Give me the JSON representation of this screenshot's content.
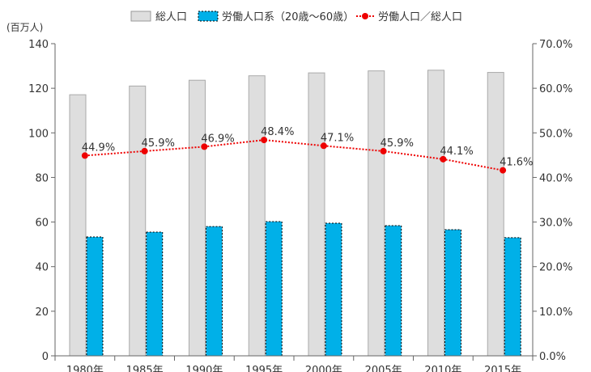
{
  "chart_data": {
    "type": "bar",
    "title": "",
    "ylabel": "(百万人)",
    "categories": [
      "1980年",
      "1985年",
      "1990年",
      "1995年",
      "2000年",
      "2005年",
      "2010年",
      "2015年"
    ],
    "ylim": [
      0,
      140
    ],
    "y_ticks": [
      "0",
      "20",
      "40",
      "60",
      "80",
      "100",
      "120",
      "140"
    ],
    "y2lim": [
      0,
      70
    ],
    "y2_ticks": [
      "0.0%",
      "10.0%",
      "20.0%",
      "30.0%",
      "40.0%",
      "50.0%",
      "60.0%",
      "70.0%"
    ],
    "legend_position": "top",
    "series": [
      {
        "name": "総人口",
        "type": "bar",
        "color": "#dedede",
        "values": [
          117.1,
          121.0,
          123.6,
          125.6,
          126.9,
          127.8,
          128.1,
          127.1
        ]
      },
      {
        "name": "労働人口系（20歳～60歳）",
        "type": "bar",
        "color": "#00b0e8",
        "values": [
          53.3,
          55.5,
          58.0,
          60.2,
          59.5,
          58.4,
          56.6,
          53.0
        ]
      },
      {
        "name": "労働人口／総人口",
        "type": "line",
        "axis": "right",
        "color": "#ee0000",
        "values": [
          44.9,
          45.9,
          46.9,
          48.4,
          47.1,
          45.9,
          44.1,
          41.6
        ],
        "labels": [
          "44.9%",
          "45.9%",
          "46.9%",
          "48.4%",
          "47.1%",
          "45.9%",
          "44.1%",
          "41.6%"
        ]
      }
    ]
  }
}
